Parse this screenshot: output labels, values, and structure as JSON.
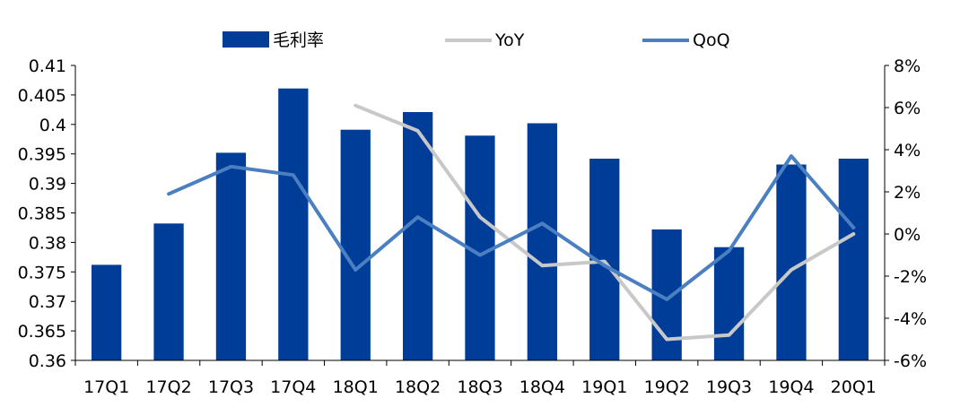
{
  "chart_data": {
    "type": "bar",
    "categories": [
      "17Q1",
      "17Q2",
      "17Q3",
      "17Q4",
      "18Q1",
      "18Q2",
      "18Q3",
      "18Q4",
      "19Q1",
      "19Q2",
      "19Q3",
      "19Q4",
      "20Q1"
    ],
    "series": [
      {
        "name": "毛利率",
        "type": "bar",
        "axis": "left",
        "color": "#003d99",
        "values": [
          0.3762,
          0.3832,
          0.3952,
          0.4061,
          0.3991,
          0.4021,
          0.3981,
          0.4002,
          0.3942,
          0.3822,
          0.3792,
          0.3932,
          0.3942
        ]
      },
      {
        "name": "YoY",
        "type": "line",
        "axis": "right",
        "color": "#c8c8c8",
        "values": [
          null,
          null,
          null,
          null,
          6.1,
          4.9,
          0.8,
          -1.5,
          -1.3,
          -5.0,
          -4.8,
          -1.7,
          0.0
        ]
      },
      {
        "name": "QoQ",
        "type": "line",
        "axis": "right",
        "color": "#4a7fc1",
        "values": [
          null,
          1.9,
          3.2,
          2.8,
          -1.7,
          0.8,
          -1.0,
          0.5,
          -1.5,
          -3.1,
          -0.8,
          3.7,
          0.3
        ]
      }
    ],
    "y_left": {
      "min": 0.36,
      "max": 0.41,
      "step": 0.005,
      "ticks": [
        "0.36",
        "0.365",
        "0.37",
        "0.375",
        "0.38",
        "0.385",
        "0.39",
        "0.395",
        "0.4",
        "0.405",
        "0.41"
      ]
    },
    "y_right": {
      "min": -6,
      "max": 8,
      "step": 2,
      "ticks": [
        "-6%",
        "-4%",
        "-2%",
        "0%",
        "2%",
        "4%",
        "6%",
        "8%"
      ]
    },
    "legend_position": "top-center",
    "grid": false
  }
}
